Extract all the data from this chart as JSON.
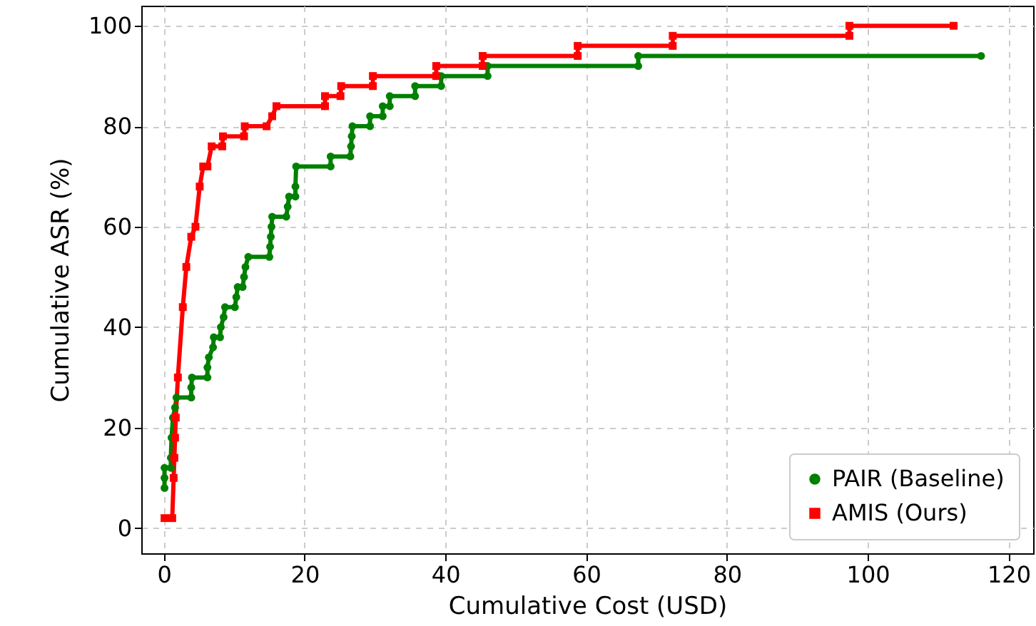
{
  "chart_data": {
    "type": "line",
    "xlabel": "Cumulative Cost (USD)",
    "ylabel": "Cumulative ASR (%)",
    "xlim": [
      -3.2,
      123.5
    ],
    "ylim": [
      -5,
      104
    ],
    "xticks": [
      0,
      20,
      40,
      60,
      80,
      100,
      120
    ],
    "yticks": [
      0,
      20,
      40,
      60,
      80,
      100
    ],
    "grid": true,
    "legend": "bottom right",
    "series": [
      {
        "name": "PAIR (Baseline)",
        "color": "#008000",
        "marker": "circle",
        "x": [
          0.1,
          0.1,
          0.1,
          1.0,
          1.0,
          1.1,
          1.3,
          1.6,
          1.8,
          3.9,
          3.9,
          4.0,
          6.2,
          6.2,
          6.4,
          7.0,
          7.1,
          8.0,
          8.1,
          8.5,
          8.7,
          10.1,
          10.3,
          10.5,
          11.2,
          11.4,
          11.6,
          12.0,
          15.0,
          15.1,
          15.2,
          15.3,
          15.4,
          17.4,
          17.6,
          17.8,
          18.7,
          18.7,
          18.8,
          23.7,
          23.7,
          26.5,
          26.6,
          26.7,
          26.8,
          29.3,
          29.3,
          31.1,
          31.1,
          32.1,
          32.1,
          35.7,
          35.7,
          39.4,
          39.4,
          46.0,
          46.0,
          67.4,
          67.4,
          116.1
        ],
        "values": [
          8,
          10,
          12,
          12,
          14,
          18,
          22,
          24,
          26,
          26,
          28,
          30,
          30,
          32,
          34,
          36,
          38,
          38,
          40,
          42,
          44,
          44,
          46,
          48,
          48,
          50,
          52,
          54,
          54,
          56,
          58,
          60,
          62,
          62,
          64,
          66,
          66,
          68,
          72,
          72,
          74,
          74,
          76,
          78,
          80,
          80,
          82,
          82,
          84,
          84,
          86,
          86,
          88,
          88,
          90,
          90,
          92,
          92,
          94,
          94
        ]
      },
      {
        "name": "AMIS (Ours)",
        "color": "#ff0000",
        "marker": "square",
        "x": [
          0.1,
          1.2,
          1.4,
          1.5,
          1.6,
          1.7,
          2.0,
          2.7,
          3.2,
          3.9,
          4.5,
          5.1,
          5.6,
          6.2,
          6.8,
          8.3,
          8.4,
          11.4,
          11.5,
          14.6,
          15.4,
          16.0,
          22.9,
          22.9,
          25.1,
          25.2,
          29.7,
          29.7,
          38.7,
          38.7,
          45.3,
          45.3,
          58.8,
          58.8,
          72.3,
          72.3,
          97.4,
          97.4,
          112.2
        ],
        "values": [
          2,
          2,
          10,
          14,
          18,
          22,
          30,
          44,
          52,
          58,
          60,
          68,
          72,
          72,
          76,
          76,
          78,
          78,
          80,
          80,
          82,
          84,
          84,
          86,
          86,
          88,
          88,
          90,
          90,
          92,
          92,
          94,
          94,
          96,
          96,
          98,
          98,
          100,
          100
        ]
      }
    ]
  }
}
